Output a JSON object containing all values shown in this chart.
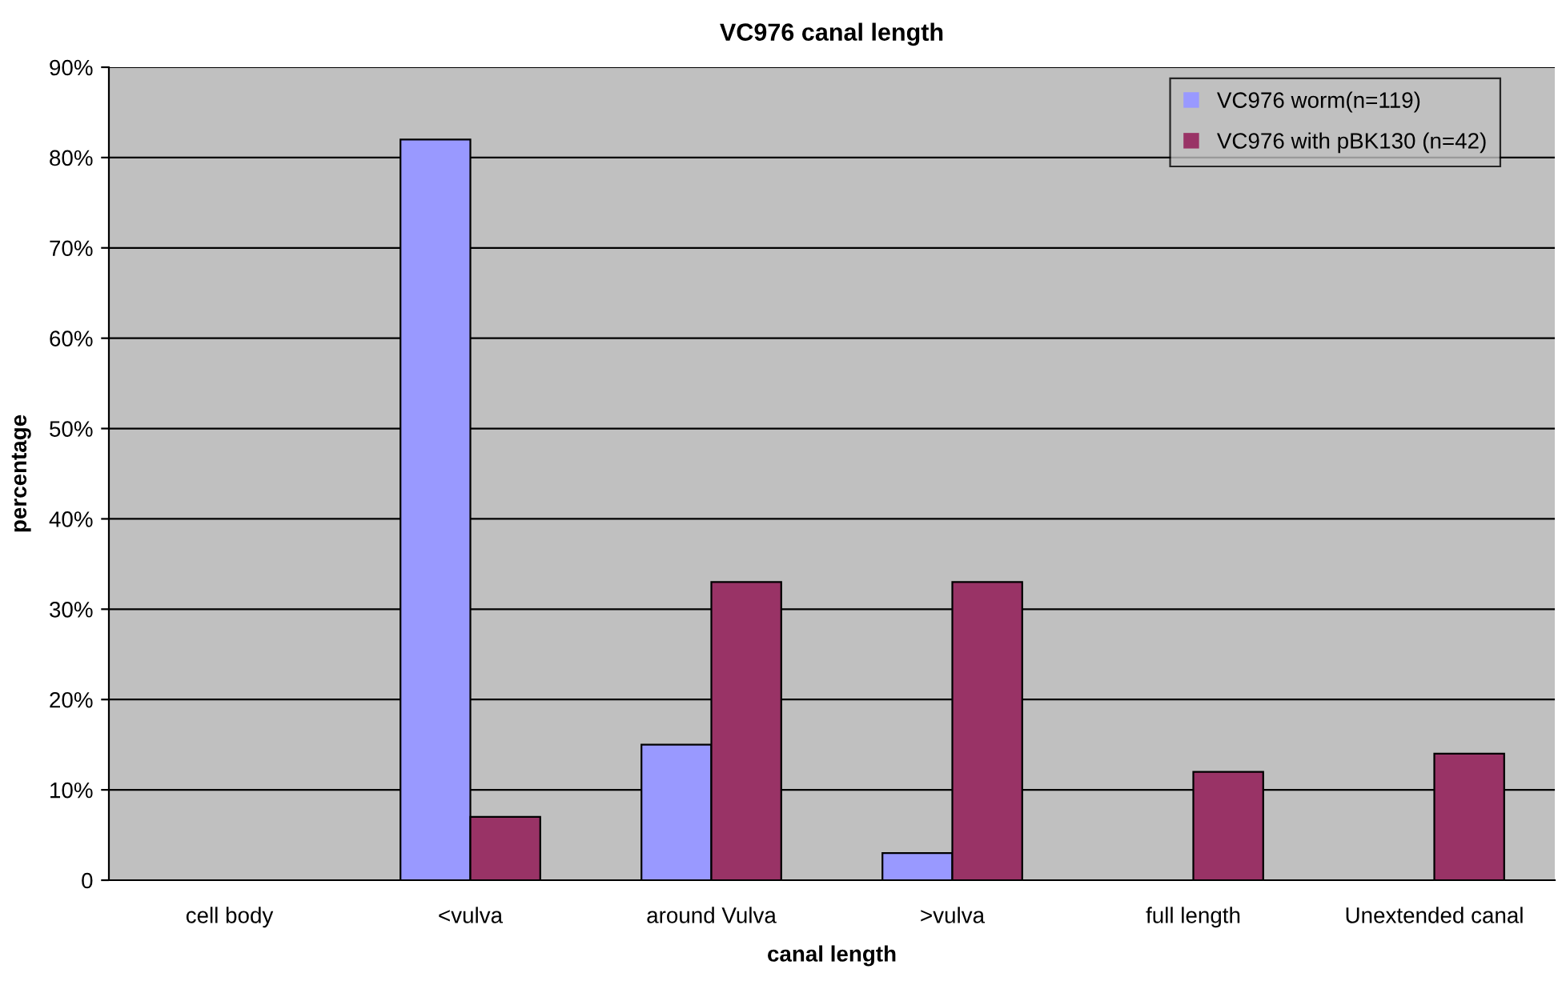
{
  "chart_data": {
    "type": "bar",
    "title": "VC976 canal length",
    "xlabel": "canal length",
    "ylabel": "percentage",
    "categories": [
      "cell body",
      "<vulva",
      "around Vulva",
      ">vulva",
      "full length",
      "Unextended canal"
    ],
    "series": [
      {
        "name": "VC976 worm(n=119)",
        "color": "#9999ff",
        "values": [
          0,
          82,
          15,
          3,
          0,
          0
        ]
      },
      {
        "name": "VC976 with pBK130 (n=42)",
        "color": "#993366",
        "values": [
          0,
          7,
          33,
          33,
          12,
          14
        ]
      }
    ],
    "ylim": [
      0,
      90
    ],
    "yticks": [
      0,
      {
        "value": 10,
        "label": "10%"
      },
      {
        "value": 20,
        "label": "20%"
      },
      {
        "value": 30,
        "label": "30%"
      },
      {
        "value": 40,
        "label": "40%"
      },
      {
        "value": 50,
        "label": "50%"
      },
      {
        "value": 60,
        "label": "60%"
      },
      {
        "value": 70,
        "label": "70%"
      },
      {
        "value": 80,
        "label": "80%"
      },
      {
        "value": 90,
        "label": "90%"
      }
    ],
    "grid": "y",
    "legend": "top right"
  }
}
